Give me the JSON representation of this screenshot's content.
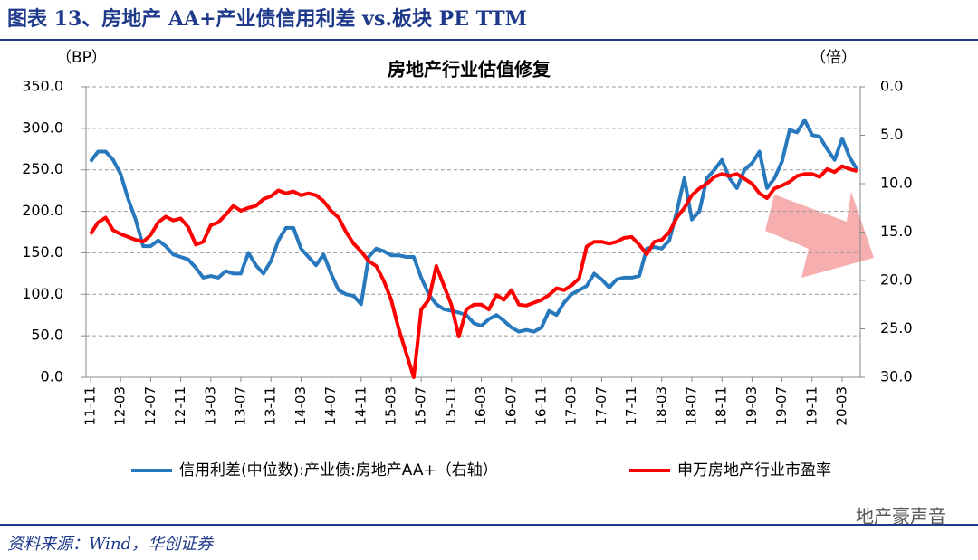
{
  "header": {
    "title": "图表 13、房地产 AA+产业债信用利差 vs.板块 PE TTM"
  },
  "chart_data": {
    "type": "line",
    "title": "房地产行业估值修复",
    "ylabel": "（BP）",
    "y2label": "（倍）",
    "categories": [
      "11-11",
      null,
      null,
      null,
      "12-03",
      null,
      null,
      null,
      "12-07",
      null,
      null,
      null,
      "12-11",
      null,
      null,
      null,
      "13-03",
      null,
      null,
      null,
      "13-07",
      null,
      null,
      null,
      "13-11",
      null,
      null,
      null,
      "14-03",
      null,
      null,
      null,
      "14-07",
      null,
      null,
      null,
      "14-11",
      null,
      null,
      null,
      "15-03",
      null,
      null,
      null,
      "15-07",
      null,
      null,
      null,
      "15-11",
      null,
      null,
      null,
      "16-03",
      null,
      null,
      null,
      "16-07",
      null,
      null,
      null,
      "16-11",
      null,
      null,
      null,
      "17-03",
      null,
      null,
      null,
      "17-07",
      null,
      null,
      null,
      "17-11",
      null,
      null,
      null,
      "18-03",
      null,
      null,
      null,
      "18-07",
      null,
      null,
      null,
      "18-11",
      null,
      null,
      null,
      "19-03",
      null,
      null,
      null,
      "19-07",
      null,
      null,
      null,
      "19-11",
      null,
      null,
      null,
      "20-03",
      null,
      null
    ],
    "series": [
      {
        "name": "信用利差(中位数):产业债:房地产AA+（右轴）",
        "color": "#2878bd",
        "axis": "y",
        "values": [
          260,
          272,
          272,
          262,
          245,
          215,
          190,
          158,
          158,
          165,
          158,
          148,
          145,
          142,
          132,
          120,
          122,
          120,
          128,
          125,
          125,
          150,
          135,
          125,
          140,
          165,
          180,
          180,
          155,
          145,
          135,
          148,
          125,
          105,
          100,
          98,
          88,
          145,
          155,
          152,
          147,
          147,
          145,
          145,
          120,
          100,
          88,
          82,
          80,
          78,
          75,
          65,
          62,
          70,
          75,
          68,
          60,
          55,
          57,
          55,
          60,
          80,
          75,
          90,
          100,
          105,
          110,
          125,
          118,
          108,
          118,
          120,
          120,
          122,
          155,
          157,
          155,
          165,
          200,
          240,
          190,
          200,
          240,
          250,
          262,
          240,
          228,
          250,
          258,
          272,
          228,
          240,
          260,
          298,
          295,
          310,
          292,
          290,
          275,
          262,
          288,
          265,
          250
        ]
      },
      {
        "name": "申万房地产行业市盈率",
        "color": "#ff0000",
        "axis": "y2",
        "values": [
          15.2,
          14.0,
          13.5,
          14.8,
          15.2,
          15.5,
          15.8,
          16.0,
          15.3,
          14.0,
          13.4,
          13.8,
          13.6,
          14.5,
          16.3,
          16.0,
          14.3,
          14.0,
          13.2,
          12.3,
          12.8,
          12.5,
          12.3,
          11.6,
          11.3,
          10.7,
          11.0,
          10.8,
          11.2,
          11.0,
          11.2,
          11.8,
          12.8,
          13.5,
          15.0,
          16.2,
          17.0,
          18.0,
          18.5,
          20.0,
          22.0,
          25.0,
          27.5,
          30.0,
          23.0,
          22.0,
          18.5,
          20.5,
          22.5,
          25.8,
          23.0,
          22.5,
          22.5,
          23.0,
          21.5,
          22.0,
          21.0,
          22.5,
          22.6,
          22.3,
          22.0,
          21.5,
          20.8,
          21.0,
          20.5,
          19.8,
          16.5,
          16.0,
          16.0,
          16.2,
          16.0,
          15.6,
          15.5,
          16.3,
          17.3,
          16.0,
          15.8,
          15.0,
          13.5,
          12.5,
          11.2,
          10.5,
          10.0,
          9.3,
          9.0,
          9.2,
          9.0,
          9.5,
          10.0,
          11.0,
          11.5,
          10.5,
          10.2,
          9.8,
          9.2,
          9.0,
          9.0,
          9.3,
          8.5,
          8.8,
          8.2,
          8.5,
          8.7
        ]
      }
    ],
    "ylim": [
      0,
      350
    ],
    "yticks": [
      {
        "value": 0,
        "label": "0.0"
      },
      {
        "value": 50,
        "label": "50.0"
      },
      {
        "value": 100,
        "label": "100.0"
      },
      {
        "value": 150,
        "label": "150.0"
      },
      {
        "value": 200,
        "label": "200.0"
      },
      {
        "value": 250,
        "label": "250.0"
      },
      {
        "value": 300,
        "label": "300.0"
      },
      {
        "value": 350,
        "label": "350.0"
      }
    ],
    "y2lim": [
      0,
      30
    ],
    "y2_reversed": true,
    "y2ticks": [
      {
        "value": 0,
        "label": "0.0"
      },
      {
        "value": 5,
        "label": "5.0"
      },
      {
        "value": 10,
        "label": "10.0"
      },
      {
        "value": 15,
        "label": "15.0"
      },
      {
        "value": 20,
        "label": "20.0"
      },
      {
        "value": 25,
        "label": "25.0"
      },
      {
        "value": 30,
        "label": "30.0"
      }
    ],
    "grid": true,
    "legend": "bottom"
  },
  "footer": {
    "source": "资料来源：Wind，华创证券",
    "watermark": "地产豪声音"
  }
}
